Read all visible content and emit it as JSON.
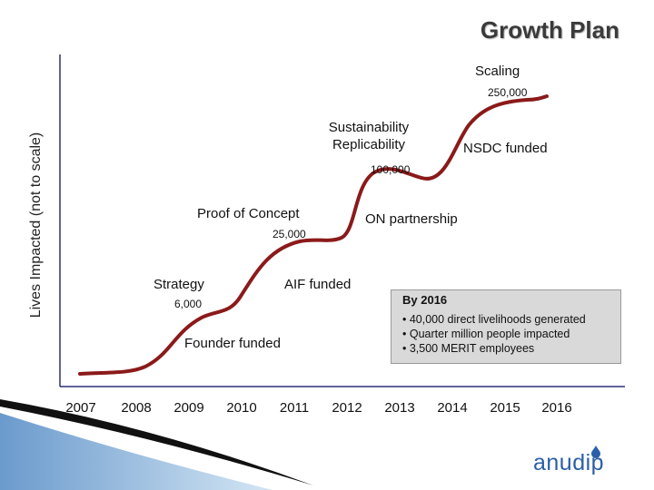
{
  "chart_data": {
    "type": "line",
    "title": "Growth Plan",
    "ylabel": "Lives Impacted (not to scale)",
    "xlabel": "",
    "categories": [
      "2007",
      "2008",
      "2009",
      "2010",
      "2011",
      "2012",
      "2013",
      "2014",
      "2015",
      "2016"
    ],
    "series": [
      {
        "name": "Lives Impacted",
        "points": [
          {
            "year": 2007,
            "label": ""
          },
          {
            "year": 2009,
            "label": "6,000"
          },
          {
            "year": 2011,
            "label": "25,000"
          },
          {
            "year": 2013,
            "label": "100,000"
          },
          {
            "year": 2016,
            "label": "250,000"
          }
        ]
      }
    ],
    "value_labels": [
      "6,000",
      "25,000",
      "100,000",
      "250,000"
    ],
    "stage_labels": {
      "scaling": "Scaling",
      "sustainability": "Sustainability",
      "replicability": "Replicability",
      "proof_of_concept": "Proof of Concept",
      "strategy": "Strategy"
    },
    "event_labels": {
      "founder_funded": "Founder funded",
      "aif_funded": "AIF funded",
      "on_partnership": "ON partnership",
      "nsdc_funded": "NSDC funded"
    },
    "line_color": "#8b1a1a",
    "axis_color": "#2f2f7a"
  },
  "callout": {
    "heading": "By 2016",
    "items": [
      "• 40,000 direct livelihoods generated",
      "• Quarter million people impacted",
      "• 3,500 MERIT employees"
    ]
  },
  "logo": {
    "text": "anudip",
    "icon": "drop-icon",
    "color": "#2a5fa8"
  },
  "decoration": {
    "swoosh_color_dark": "#111111",
    "swoosh_color_light": "#7fb0d9"
  }
}
